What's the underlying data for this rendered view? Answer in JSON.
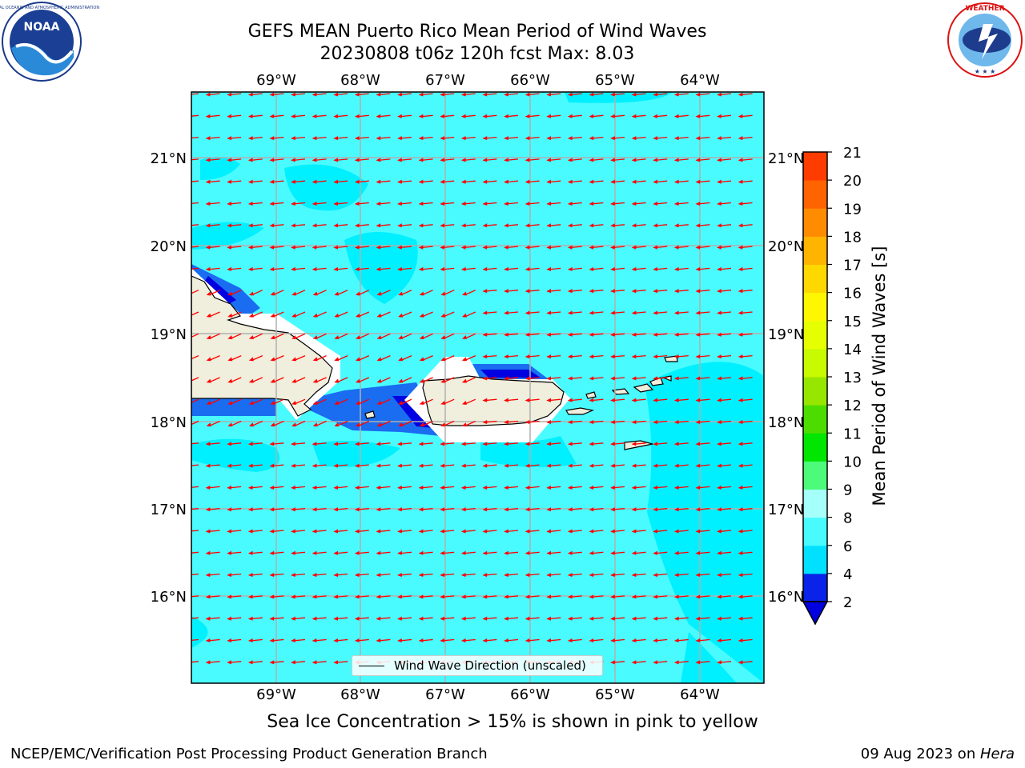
{
  "header": {
    "title_line1": "GEFS MEAN Puerto Rico Mean Period of Wind Waves",
    "title_line2": "20230808 t06z 120h fcst   Max: 8.03"
  },
  "logos": {
    "left": "noaa-logo",
    "right": "nws-logo"
  },
  "map": {
    "lon_labels": [
      "69°W",
      "68°W",
      "67°W",
      "66°W",
      "65°W",
      "64°W"
    ],
    "lat_labels": [
      "21°N",
      "20°N",
      "19°N",
      "18°N",
      "17°N",
      "16°N"
    ],
    "legend_label": "Wind Wave Direction (unscaled)",
    "arrow_color": "#ff0000",
    "land_color": "#f0eedc"
  },
  "colorbar": {
    "label": "Mean Period of Wind Waves [s]",
    "ticks": [
      "2",
      "4",
      "6",
      "8",
      "9",
      "10",
      "11",
      "12",
      "13",
      "14",
      "15",
      "16",
      "17",
      "18",
      "19",
      "20",
      "21"
    ],
    "colors": [
      "#0b22e8",
      "#00e1ff",
      "#49fbff",
      "#a5fffa",
      "#4dfb7a",
      "#00e600",
      "#4ddc00",
      "#96e600",
      "#c8fa00",
      "#e6ff00",
      "#fff700",
      "#ffd800",
      "#ffb400",
      "#ff8c00",
      "#ff6400",
      "#ff3c00",
      "#ff0a00"
    ],
    "under_color": "#0000e0"
  },
  "caption": "Sea Ice Concentration > 15% is shown in pink to yellow",
  "footer": {
    "left": "NCEP/EMC/Verification Post Processing Product Generation Branch",
    "right_prefix": "09 Aug 2023 on ",
    "right_host": "Hera"
  }
}
